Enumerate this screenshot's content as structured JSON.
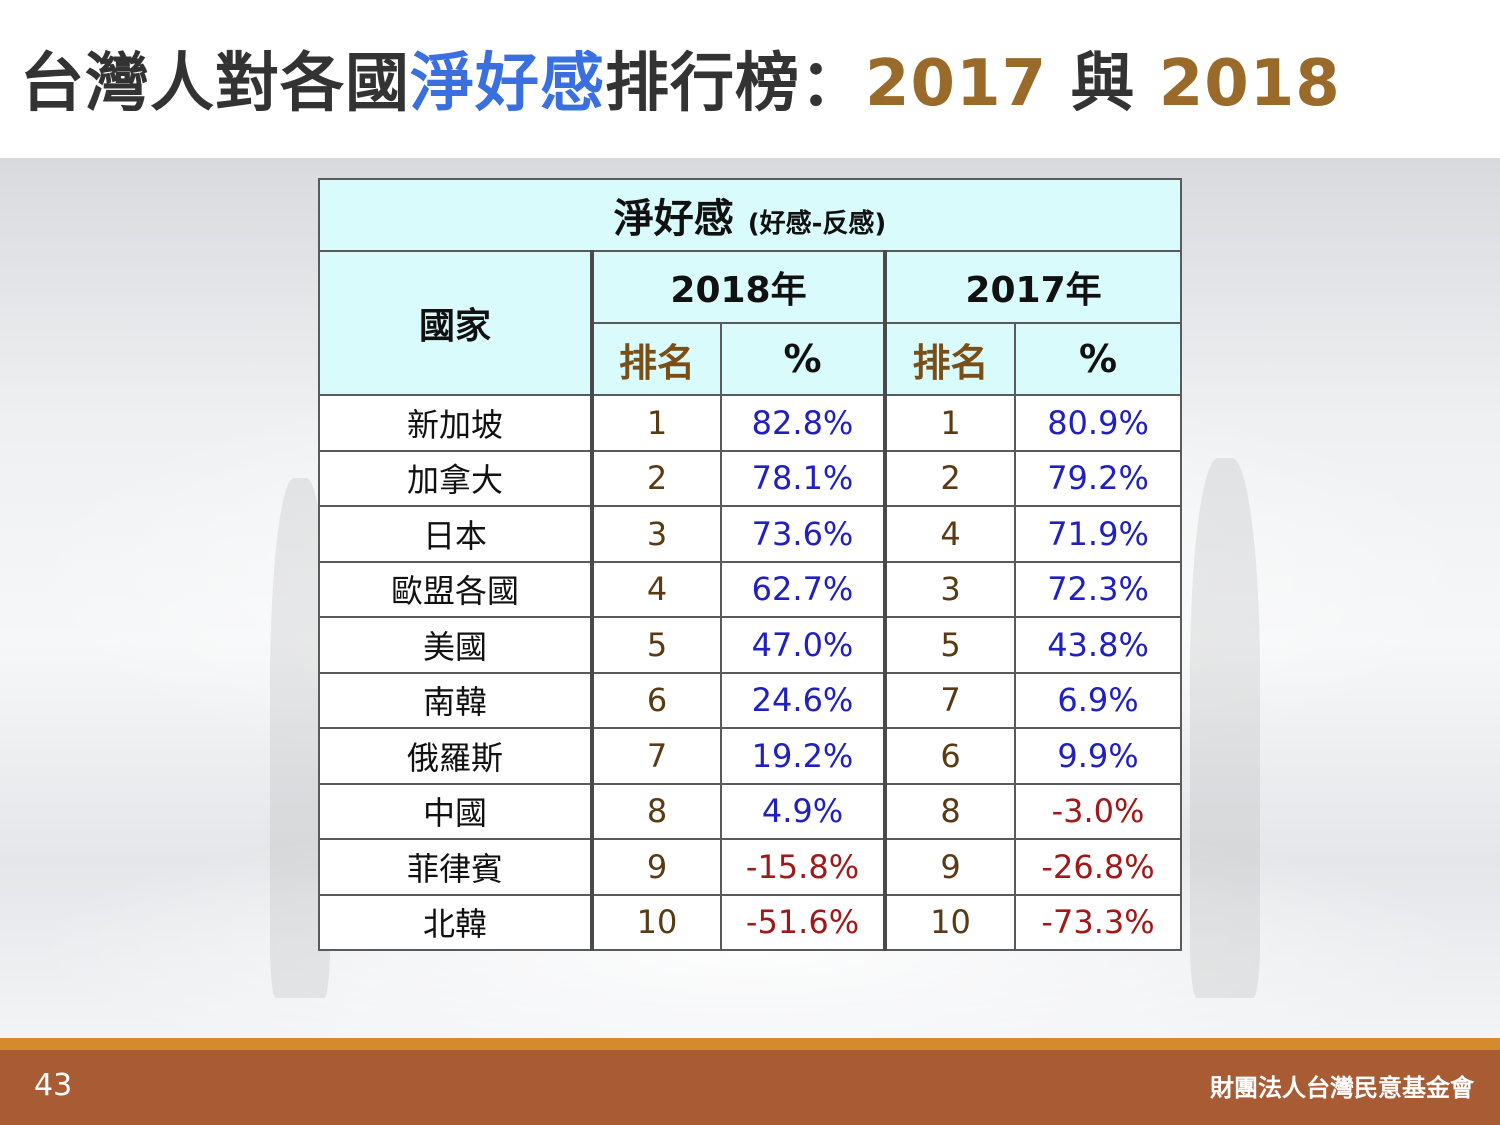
{
  "title": {
    "part1": "台灣人對各國",
    "part2": "淨好感",
    "part3": "排行榜：",
    "year_a": "2017",
    "conj": " 與 ",
    "year_b": "2018"
  },
  "table": {
    "header_main": "淨好感",
    "header_main_sub": "(好感-反感)",
    "country_header": "國家",
    "year_2018": "2018年",
    "year_2017": "2017年",
    "rank_label": "排名",
    "pct_label": "%",
    "rows": [
      {
        "country": "新加坡",
        "rank_2018": "1",
        "pct_2018": "82.8%",
        "rank_2017": "1",
        "pct_2017": "80.9%"
      },
      {
        "country": "加拿大",
        "rank_2018": "2",
        "pct_2018": "78.1%",
        "rank_2017": "2",
        "pct_2017": "79.2%"
      },
      {
        "country": "日本",
        "rank_2018": "3",
        "pct_2018": "73.6%",
        "rank_2017": "4",
        "pct_2017": "71.9%"
      },
      {
        "country": "歐盟各國",
        "rank_2018": "4",
        "pct_2018": "62.7%",
        "rank_2017": "3",
        "pct_2017": "72.3%"
      },
      {
        "country": "美國",
        "rank_2018": "5",
        "pct_2018": "47.0%",
        "rank_2017": "5",
        "pct_2017": "43.8%"
      },
      {
        "country": "南韓",
        "rank_2018": "6",
        "pct_2018": "24.6%",
        "rank_2017": "7",
        "pct_2017": "6.9%"
      },
      {
        "country": "俄羅斯",
        "rank_2018": "7",
        "pct_2018": "19.2%",
        "rank_2017": "6",
        "pct_2017": "9.9%"
      },
      {
        "country": "中國",
        "rank_2018": "8",
        "pct_2018": "4.9%",
        "rank_2017": "8",
        "pct_2017": "-3.0%"
      },
      {
        "country": "菲律賓",
        "rank_2018": "9",
        "pct_2018": "-15.8%",
        "rank_2017": "9",
        "pct_2017": "-26.8%"
      },
      {
        "country": "北韓",
        "rank_2018": "10",
        "pct_2018": "-51.6%",
        "rank_2017": "10",
        "pct_2017": "-73.3%"
      }
    ]
  },
  "footer": {
    "page_number": "43",
    "organization": "財團法人台灣民意基金會"
  },
  "colors": {
    "title_dark": "#333333",
    "title_accent": "#3a6fe0",
    "title_year": "#9a6a2a",
    "header_bg": "#d9fbfc",
    "positive": "#2020c0",
    "negative": "#a01818",
    "footer_bg": "#a95c33",
    "footer_stripe": "#d58a2d"
  }
}
